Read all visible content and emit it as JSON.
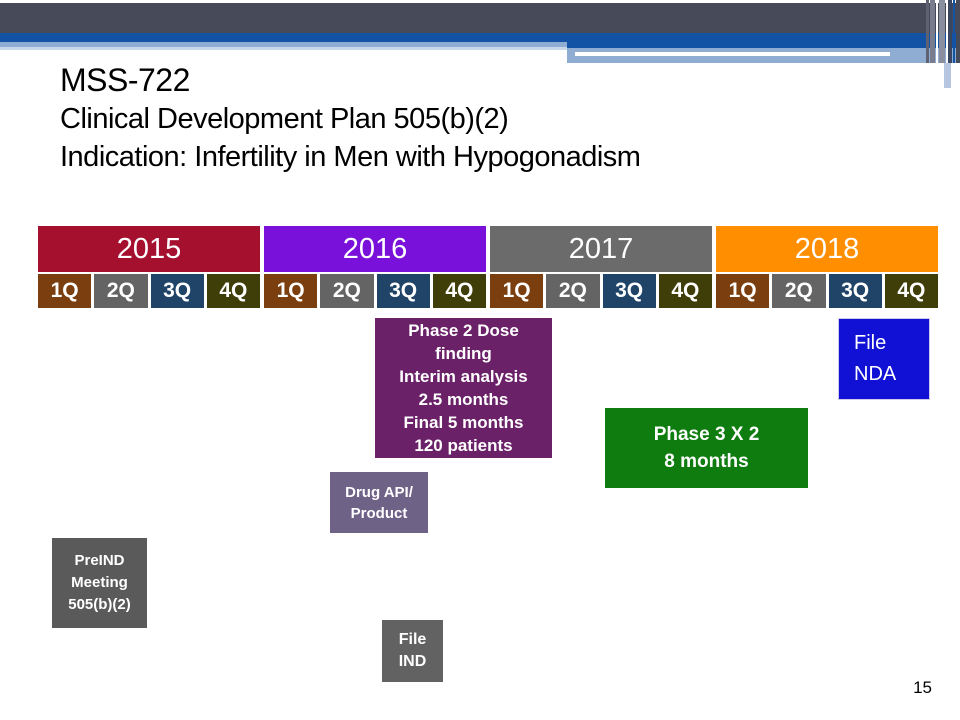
{
  "slide": {
    "title_lines": [
      "MSS-722",
      "Clinical Development Plan 505(b)(2)",
      "Indication: Infertility in Men with Hypogonadism"
    ],
    "page_number": "15"
  },
  "theme": {
    "slate_bar": "#474A59",
    "blue_bar": "#1353A5",
    "light_blue_bar": "#8FADD3"
  },
  "timeline": {
    "years": [
      {
        "label": "2015",
        "color": "#A6102F"
      },
      {
        "label": "2016",
        "color": "#7911DB"
      },
      {
        "label": "2017",
        "color": "#6B6B6B"
      },
      {
        "label": "2018",
        "color": "#FF8E01"
      }
    ],
    "quarters": [
      {
        "label": "1Q",
        "color": "#7B3F0F"
      },
      {
        "label": "2Q",
        "color": "#646464"
      },
      {
        "label": "3Q",
        "color": "#1F4468"
      },
      {
        "label": "4Q",
        "color": "#3F3D08"
      },
      {
        "label": "1Q",
        "color": "#7B3F0F"
      },
      {
        "label": "2Q",
        "color": "#646464"
      },
      {
        "label": "3Q",
        "color": "#1F4468"
      },
      {
        "label": "4Q",
        "color": "#3F3D08"
      },
      {
        "label": "1Q",
        "color": "#7B3F0F"
      },
      {
        "label": "2Q",
        "color": "#646464"
      },
      {
        "label": "3Q",
        "color": "#1F4468"
      },
      {
        "label": "4Q",
        "color": "#3F3D08"
      },
      {
        "label": "1Q",
        "color": "#7B3F0F"
      },
      {
        "label": "2Q",
        "color": "#646464"
      },
      {
        "label": "3Q",
        "color": "#1F4468"
      },
      {
        "label": "4Q",
        "color": "#3F3D08"
      }
    ]
  },
  "milestones": [
    {
      "id": "phase2",
      "lines": [
        "Phase 2 Dose",
        "finding",
        "Interim analysis",
        "2.5 months",
        "Final 5 months",
        "120 patients"
      ],
      "color": "#6B2168"
    },
    {
      "id": "file-nda",
      "lines": [
        "File",
        "NDA"
      ],
      "color": "#1111D6"
    },
    {
      "id": "phase3",
      "lines": [
        "Phase 3 X 2",
        "8 months"
      ],
      "color": "#0E7C0E"
    },
    {
      "id": "drug-api",
      "lines": [
        "Drug API/",
        "Product"
      ],
      "color": "#6F6287"
    },
    {
      "id": "preind",
      "lines": [
        "PreIND",
        "Meeting",
        "505(b)(2)"
      ],
      "color": "#5A5A5A"
    },
    {
      "id": "file-ind",
      "lines": [
        "File",
        "IND"
      ],
      "color": "#626262"
    }
  ]
}
